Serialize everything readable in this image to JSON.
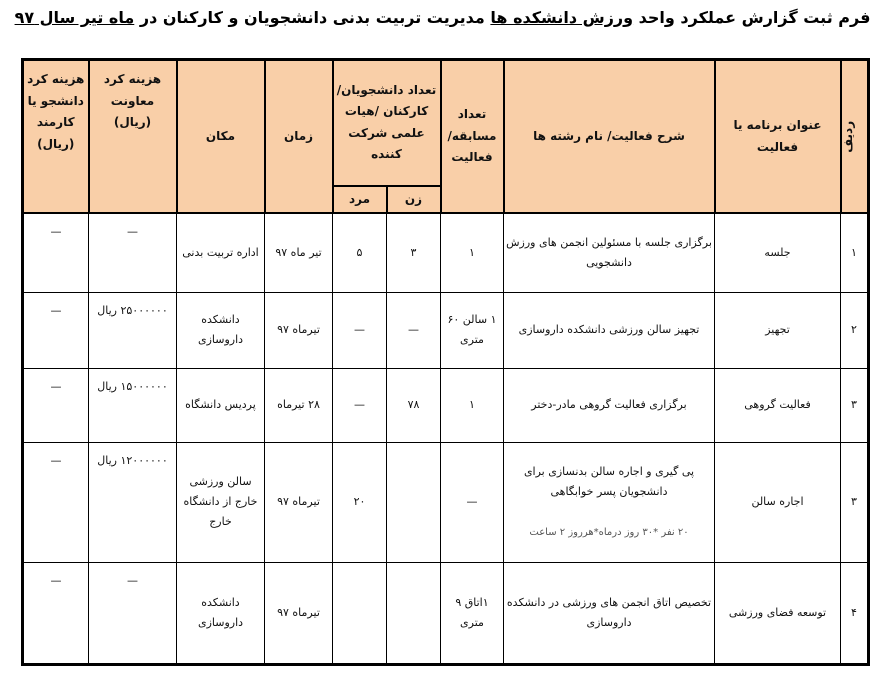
{
  "title": {
    "part1": "فرم ثبت گزارش عملکرد واحد ",
    "part2": "ورزش دانشکده ها",
    "part3": " مدیریت تربیت بدنی دانشجویان و کارکنان در ",
    "part4": "ماه تیر سال ۹۷"
  },
  "headers": {
    "row_no": "ردیف",
    "program_title": "عنوان برنامه یا فعالیت",
    "description": "شرح فعالیت/ نام رشته ها",
    "count": "تعداد مسابقه/ فعالیت",
    "participants": "تعداد دانشجویان/ کارکنان /هیات علمی شرکت کننده",
    "female": "زن",
    "male": "مرد",
    "time": "زمان",
    "place": "مکان",
    "deputy_cost": "هزینه کرد معاونت (ریال)",
    "person_cost": "هزینه کرد دانشجو یا کارمند (ریال)"
  },
  "rows": [
    {
      "no": "۱",
      "title": "جلسه",
      "description": "برگزاری جلسه با مسئولین انجمن های ورزش دانشجویی",
      "note": "",
      "count": "۱",
      "female": "۳",
      "male": "۵",
      "time": "تیر ماه ۹۷",
      "place": "اداره تربیت بدنی",
      "deputy_cost": "—",
      "person_cost": "—"
    },
    {
      "no": "۲",
      "title": "تجهیز",
      "description": "تجهیز سالن ورزشی دانشکده داروسازی",
      "note": "",
      "count": "۱ سالن ۶۰ متری",
      "female": "—",
      "male": "—",
      "time": "تیرماه ۹۷",
      "place": "دانشکده داروسازی",
      "deputy_cost": "۲۵۰۰۰۰۰۰ ریال",
      "person_cost": "—"
    },
    {
      "no": "۳",
      "title": "فعالیت گروهی",
      "description": "برگزاری فعالیت گروهی مادر-دختر",
      "note": "",
      "count": "۱",
      "female": "۷۸",
      "male": "—",
      "time": "۲۸ تیرماه",
      "place": "پردیس دانشگاه",
      "deputy_cost": "۱۵۰۰۰۰۰۰ ریال",
      "person_cost": "—"
    },
    {
      "no": "۳",
      "title": "اجاره سالن",
      "description": "پی گیری و اجاره سالن بدنسازی برای دانشجویان پسر خوابگاهی",
      "note": "۲۰ نفر *۳۰ روز درماه*هرروز ۲ ساعت",
      "count": "—",
      "female": "",
      "male": "۲۰",
      "time": "تیرماه ۹۷",
      "place": "سالن ورزشی خارج از دانشگاه خارج",
      "deputy_cost": "۱۲۰۰۰۰۰۰ ریال",
      "person_cost": "—"
    },
    {
      "no": "۴",
      "title": "توسعه فضای ورزشی",
      "description": "تخصیص اتاق انجمن های ورزشی در دانشکده داروسازی",
      "note": "",
      "count": "۱اتاق ۹ متری",
      "female": "",
      "male": "",
      "time": "تیرماه ۹۷",
      "place": "دانشکده داروسازی",
      "deputy_cost": "—",
      "person_cost": "—"
    }
  ],
  "colors": {
    "header_bg": "#f9cfa8",
    "border": "#000000"
  }
}
